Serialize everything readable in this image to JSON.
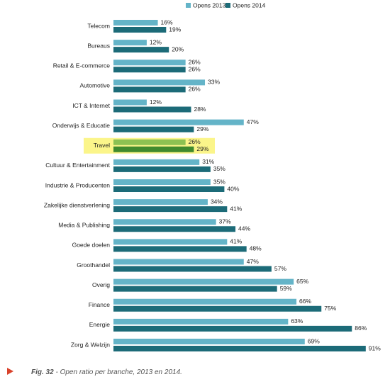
{
  "chart_data": {
    "type": "bar",
    "orientation": "horizontal",
    "categories": [
      "Telecom",
      "Bureaus",
      "Retail & E-commerce",
      "Automotive",
      "ICT & Internet",
      "Onderwijs & Educatie",
      "Travel",
      "Cultuur & Entertainment",
      "Industrie & Producenten",
      "Zakelijke dienstverlening",
      "Media & Publishing",
      "Goede doelen",
      "Groothandel",
      "Overig",
      "Finance",
      "Energie",
      "Zorg & Welzijn"
    ],
    "series": [
      {
        "name": "Opens 2013",
        "color": "#64b4c8",
        "highlight_color": "#8cc152",
        "values": [
          16,
          12,
          26,
          33,
          12,
          47,
          26,
          31,
          35,
          34,
          37,
          41,
          47,
          65,
          66,
          63,
          69
        ],
        "value_labels": [
          "16%",
          "12%",
          "26%",
          "33%",
          "12%",
          "47%",
          "26%",
          "31%",
          "35%",
          "34%",
          "37%",
          "41%",
          "47%",
          "65%",
          "66%",
          "63%",
          "69%"
        ]
      },
      {
        "name": "Opens 2014",
        "color": "#1c6b78",
        "highlight_color": "#3f8a2e",
        "values": [
          19,
          20,
          26,
          26,
          28,
          29,
          29,
          35,
          40,
          41,
          44,
          48,
          57,
          59,
          75,
          86,
          91
        ],
        "value_labels": [
          "19%",
          "20%",
          "26%",
          "26%",
          "28%",
          "29%",
          "29%",
          "35%",
          "40%",
          "41%",
          "44%",
          "48%",
          "57%",
          "59%",
          "75%",
          "86%",
          "91%"
        ]
      }
    ],
    "highlight": 6,
    "legend": "top",
    "caption_label": "Fig. 32",
    "caption": " - Open ratio per branche, 2013 en 2014."
  }
}
